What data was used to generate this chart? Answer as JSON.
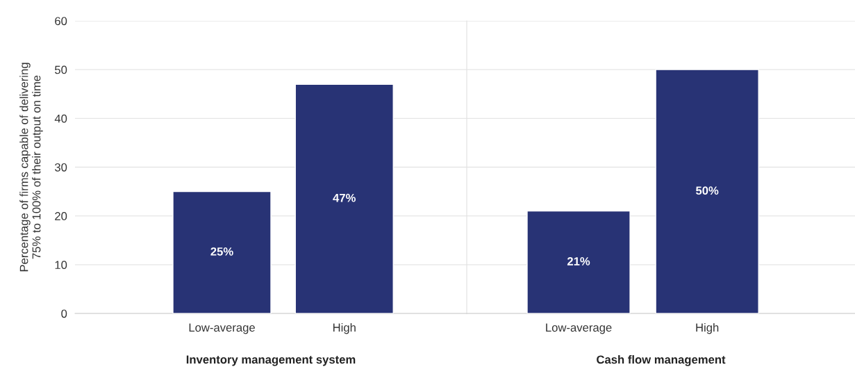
{
  "chart_data": [
    {
      "type": "bar",
      "xlabel": "Inventory management system",
      "ylabel": "Percentage of firms capable of delivering\n75% to 100% of their output on time",
      "categories": [
        "Low-average",
        "High"
      ],
      "values": [
        25,
        47
      ],
      "value_labels": [
        "25%",
        "47%"
      ],
      "color": "#283375",
      "ylim": [
        0,
        60
      ],
      "yticks": [
        0,
        10,
        20,
        30,
        40,
        50,
        60
      ],
      "grid": "y"
    },
    {
      "type": "bar",
      "xlabel": "Cash flow management",
      "categories": [
        "Low-average",
        "High"
      ],
      "values": [
        21,
        50
      ],
      "value_labels": [
        "21%",
        "50%"
      ],
      "color": "#283375",
      "ylim": [
        0,
        60
      ],
      "yticks": [
        0,
        10,
        20,
        30,
        40,
        50,
        60
      ],
      "grid": "y",
      "tick_labels": "x"
    }
  ]
}
